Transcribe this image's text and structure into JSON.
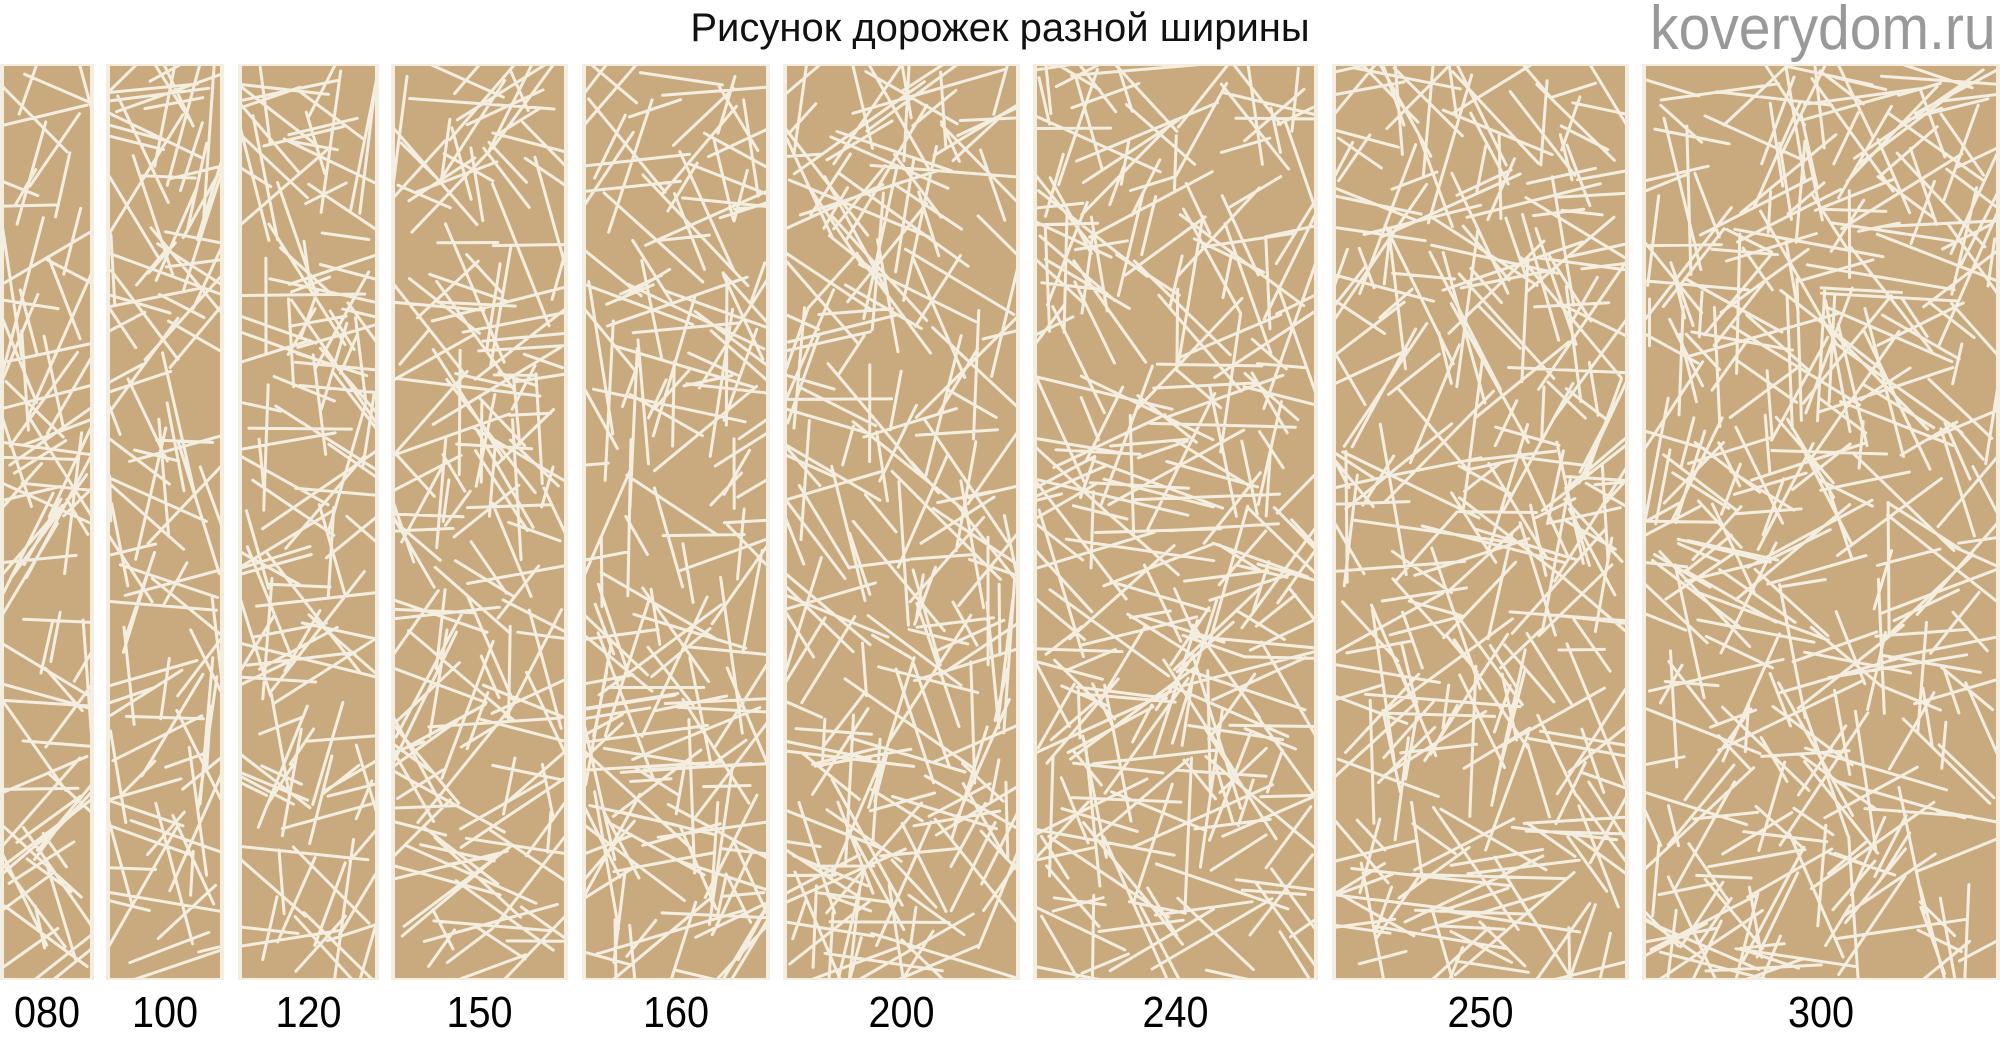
{
  "title": "Рисунок дорожек разной ширины",
  "colors": {
    "ground": "#c9aa7f",
    "lines": "#f4eee0"
  },
  "strips": [
    {
      "label": "080"
    },
    {
      "label": "100"
    },
    {
      "label": "120"
    },
    {
      "label": "150"
    },
    {
      "label": "160"
    },
    {
      "label": "200"
    },
    {
      "label": "240"
    },
    {
      "label": "250"
    },
    {
      "label": "300"
    }
  ],
  "watermark": "koverydom.ru"
}
